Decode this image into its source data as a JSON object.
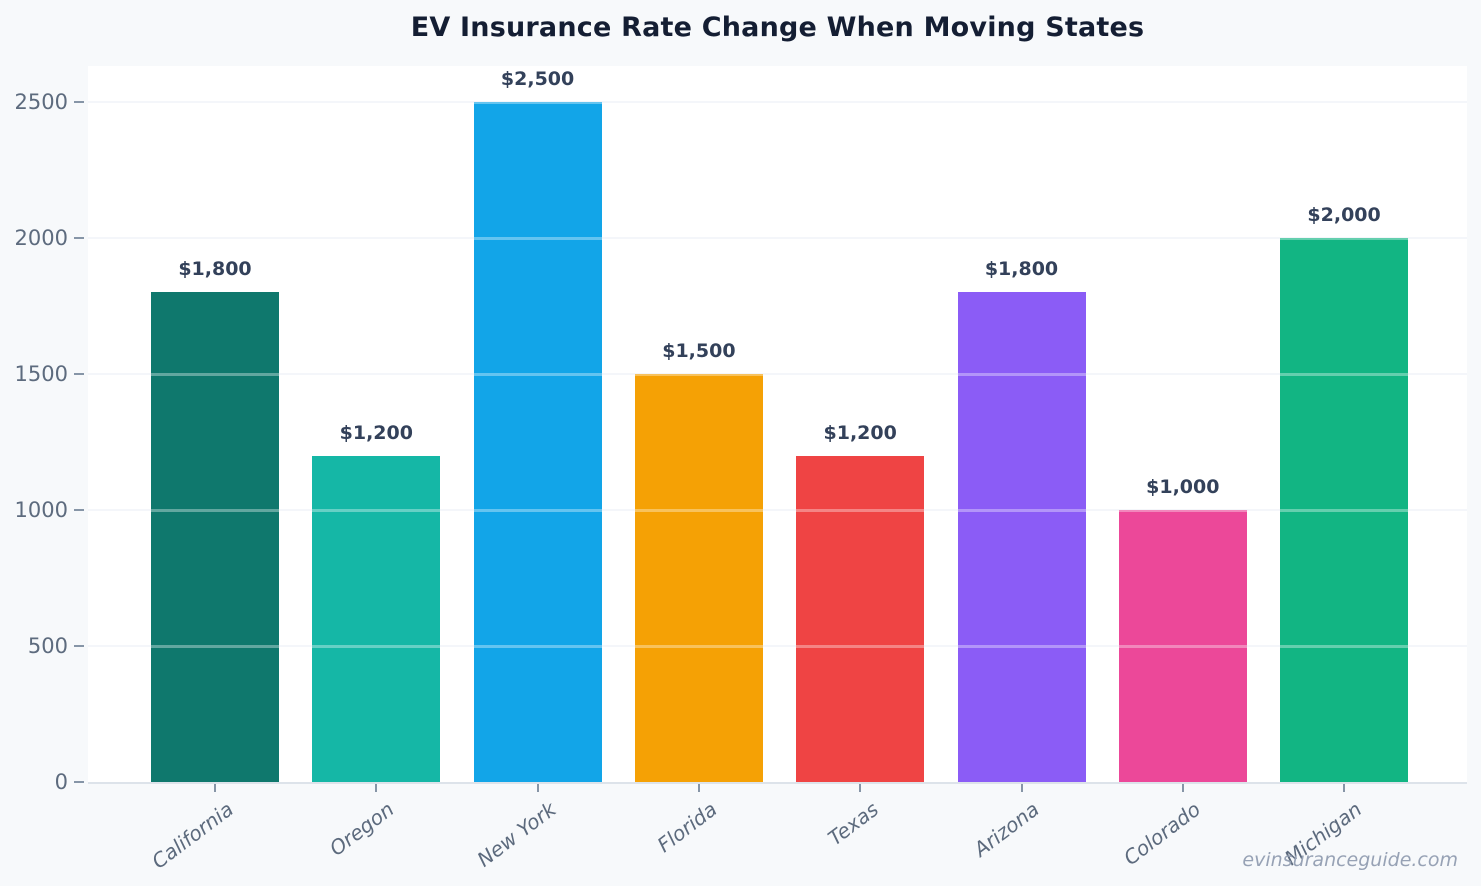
{
  "title": "EV Insurance Rate Change When Moving States",
  "watermark": "evinsuranceguide.com",
  "chart_data": {
    "type": "bar",
    "title": "EV Insurance Rate Change When Moving States",
    "categories": [
      "California",
      "Oregon",
      "New York",
      "Florida",
      "Texas",
      "Arizona",
      "Colorado",
      "Michigan"
    ],
    "values": [
      1800,
      1200,
      2500,
      1500,
      1200,
      1800,
      1000,
      2000
    ],
    "value_labels": [
      "$1,800",
      "$1,200",
      "$2,500",
      "$1,500",
      "$1,200",
      "$1,800",
      "$1,000",
      "$2,000"
    ],
    "bar_colors": [
      "#0f786d",
      "#15b7a6",
      "#12a5e8",
      "#f5a105",
      "#ef4444",
      "#8b5cf6",
      "#ec4899",
      "#12b583"
    ],
    "yticks": [
      0,
      500,
      1000,
      1500,
      2000,
      2500
    ],
    "ytick_labels": [
      "0",
      "500",
      "1000",
      "1500",
      "2000",
      "2500"
    ],
    "ylim": [
      0,
      2637
    ],
    "xlabel": "",
    "ylabel": "",
    "grid": "horizontal",
    "legend": "none",
    "background_color": "#f7f9fb",
    "plot_background_color": "#ffffff",
    "title_color": "#141e33",
    "value_label_color": "#33415a",
    "axis_label_color": "#5c6a7d"
  }
}
